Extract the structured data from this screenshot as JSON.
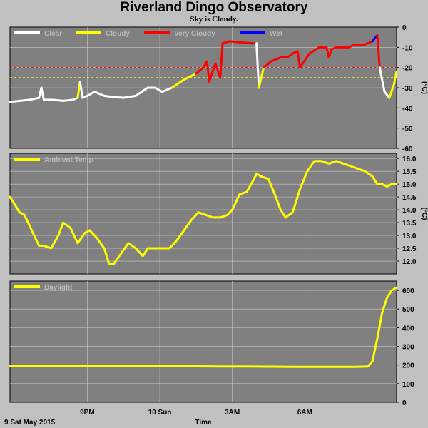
{
  "header": {
    "title": "Riverland Dingo Observatory",
    "subtitle": "Sky is Cloudy."
  },
  "footer": {
    "date_label": "9 Sat May 2015",
    "x_axis_label": "Time"
  },
  "colors": {
    "plot_background": "#808080",
    "page_background": "#c0c0c0",
    "grid": "#c8c8c8",
    "clear": "#ffffff",
    "cloudy": "#ffff00",
    "very_cloudy": "#ff0000",
    "wet": "#0000ff",
    "threshold_red": "#ff0000",
    "threshold_yellow": "#ffff00"
  },
  "chart_data": [
    {
      "type": "line",
      "panel": "sky",
      "ylabel": "(°C)",
      "ylim": [
        -60,
        0
      ],
      "yticks": [
        "0",
        "-10",
        "-20",
        "-30",
        "-40",
        "-50",
        "-60"
      ],
      "xticks": [
        "9PM",
        "10 Sun",
        "3AM",
        "6AM"
      ],
      "grid": true,
      "legend_placement": "top-left",
      "legend": [
        {
          "name": "Clear",
          "color": "#ffffff"
        },
        {
          "name": "Cloudy",
          "color": "#ffff00"
        },
        {
          "name": "Very Cloudy",
          "color": "#ff0000"
        },
        {
          "name": "Wet",
          "color": "#0000ff"
        }
      ],
      "thresholds": [
        {
          "value": -20,
          "color": "#ff0000"
        },
        {
          "value": -25,
          "color": "#ffff00"
        }
      ],
      "x": [
        17.8,
        18.2,
        18.6,
        19.0,
        19.1,
        19.2,
        19.6,
        20.0,
        20.4,
        20.6,
        20.7,
        20.8,
        21.0,
        21.3,
        21.7,
        22.0,
        22.5,
        23.0,
        23.5,
        23.8,
        24.1,
        24.5,
        25.0,
        25.5,
        25.8,
        25.95,
        26.05,
        26.3,
        26.5,
        26.6,
        26.9,
        27.3,
        27.8,
        28.0,
        28.1,
        28.3,
        28.6,
        29.0,
        29.3,
        29.5,
        29.7,
        29.8,
        30.2,
        30.6,
        30.9,
        31.0,
        31.1,
        31.3,
        31.5,
        31.8,
        32.0,
        32.4,
        32.8,
        33.0,
        33.1,
        33.3,
        33.5,
        33.7,
        33.8
      ],
      "y": [
        -37,
        -36.5,
        -36,
        -35,
        -30,
        -36,
        -36,
        -36.5,
        -36,
        -35,
        -27,
        -35,
        -34,
        -32,
        -34,
        -34.5,
        -35,
        -34,
        -30,
        -30,
        -32,
        -30,
        -26,
        -23,
        -20,
        -17,
        -27,
        -18,
        -25,
        -8,
        -7,
        -7.5,
        -8,
        -8,
        -30,
        -20,
        -17,
        -15,
        -15,
        -13,
        -12,
        -20,
        -13,
        -10,
        -10,
        -15,
        -11,
        -10,
        -10,
        -10,
        -9,
        -9,
        -7,
        -4,
        -20,
        -32,
        -35,
        -28,
        -22
      ],
      "colors": [
        "#ffffff",
        "#ffffff",
        "#ffffff",
        "#ffffff",
        "#ffffff",
        "#ffffff",
        "#ffffff",
        "#ffffff",
        "#ffffff",
        "#ffffff",
        "#ffff00",
        "#ffffff",
        "#ffffff",
        "#ffffff",
        "#ffffff",
        "#ffffff",
        "#ffffff",
        "#ffffff",
        "#ffffff",
        "#ffffff",
        "#ffffff",
        "#ffffff",
        "#ffff00",
        "#ffff00",
        "#ff0000",
        "#ff0000",
        "#ff0000",
        "#ff0000",
        "#ff0000",
        "#ff0000",
        "#ff0000",
        "#ff0000",
        "#ff0000",
        "#ff0000",
        "#ffffff",
        "#ffff00",
        "#ff0000",
        "#ff0000",
        "#ff0000",
        "#ff0000",
        "#ff0000",
        "#ff0000",
        "#ff0000",
        "#ff0000",
        "#ff0000",
        "#ff0000",
        "#ff0000",
        "#ff0000",
        "#ff0000",
        "#ff0000",
        "#ff0000",
        "#ff0000",
        "#ff0000",
        "#0000ff",
        "#ff0000",
        "#ffffff",
        "#ffffff",
        "#ffff00",
        "#ffff00"
      ]
    },
    {
      "type": "line",
      "panel": "ambient",
      "ylabel": "(°C)",
      "ylim": [
        11.5,
        16.2
      ],
      "yticks": [
        "16.0",
        "15.5",
        "15.0",
        "14.5",
        "14.0",
        "13.5",
        "13.0",
        "12.5",
        "12.0"
      ],
      "xticks": [
        "9PM",
        "10 Sun",
        "3AM",
        "6AM"
      ],
      "grid": true,
      "legend_placement": "top-left",
      "series": [
        {
          "name": "Ambient Temp",
          "color": "#ffff00",
          "x": [
            17.8,
            18.0,
            18.2,
            18.4,
            18.7,
            19.0,
            19.2,
            19.5,
            19.8,
            20.0,
            20.3,
            20.6,
            20.9,
            21.1,
            21.4,
            21.7,
            21.9,
            22.1,
            22.4,
            22.7,
            23.0,
            23.3,
            23.5,
            23.8,
            24.1,
            24.4,
            24.7,
            25.0,
            25.3,
            25.6,
            25.9,
            26.2,
            26.5,
            26.8,
            27.0,
            27.3,
            27.6,
            27.9,
            28.0,
            28.2,
            28.5,
            28.8,
            29.0,
            29.2,
            29.5,
            29.8,
            30.1,
            30.4,
            30.7,
            31.0,
            31.3,
            31.6,
            31.9,
            32.2,
            32.5,
            32.8,
            33.0,
            33.2,
            33.4,
            33.6,
            33.8
          ],
          "y": [
            14.5,
            14.2,
            13.9,
            13.8,
            13.2,
            12.6,
            12.6,
            12.5,
            13.0,
            13.5,
            13.3,
            12.7,
            13.1,
            13.2,
            12.9,
            12.5,
            11.9,
            11.9,
            12.3,
            12.7,
            12.5,
            12.2,
            12.5,
            12.5,
            12.5,
            12.5,
            12.8,
            13.2,
            13.6,
            13.9,
            13.8,
            13.7,
            13.7,
            13.8,
            14.0,
            14.6,
            14.7,
            15.2,
            15.4,
            15.3,
            15.2,
            14.5,
            14.0,
            13.7,
            13.9,
            14.8,
            15.5,
            15.9,
            15.9,
            15.8,
            15.9,
            15.8,
            15.7,
            15.6,
            15.5,
            15.3,
            15.0,
            15.0,
            14.9,
            15.0,
            15.0
          ]
        }
      ]
    },
    {
      "type": "line",
      "panel": "daylight",
      "ylabel": "",
      "ylim": [
        0,
        650
      ],
      "yticks": [
        "600",
        "500",
        "400",
        "300",
        "200",
        "100",
        "0"
      ],
      "xticks": [
        "9PM",
        "10 Sun",
        "3AM",
        "6AM"
      ],
      "grid": true,
      "legend_placement": "top-left",
      "series": [
        {
          "name": "Daylight",
          "color": "#ffff00",
          "x": [
            17.8,
            18.5,
            19.5,
            20.5,
            21.5,
            22.5,
            23.5,
            24.5,
            25.5,
            26.5,
            27.5,
            28.5,
            29.5,
            30.5,
            31.5,
            32.0,
            32.6,
            32.8,
            33.0,
            33.2,
            33.4,
            33.6,
            33.8
          ],
          "y": [
            195,
            195,
            194,
            195,
            194,
            195,
            194,
            193,
            193,
            192,
            192,
            191,
            190,
            190,
            190,
            190,
            192,
            220,
            340,
            480,
            560,
            600,
            615
          ]
        }
      ]
    }
  ]
}
